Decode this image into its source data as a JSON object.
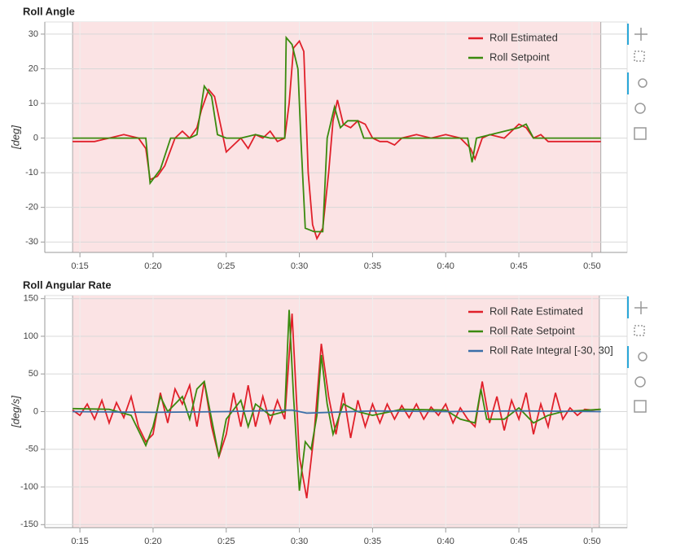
{
  "chart_data": [
    {
      "type": "line",
      "title": "Roll Angle",
      "y_label": "[deg]",
      "xlim": [
        12.6,
        52.4
      ],
      "ylim": [
        -33,
        33.5
      ],
      "xticks": [
        {
          "value": 15,
          "label": "0:15"
        },
        {
          "value": 20,
          "label": "0:20"
        },
        {
          "value": 25,
          "label": "0:25"
        },
        {
          "value": 30,
          "label": "0:30"
        },
        {
          "value": 35,
          "label": "0:35"
        },
        {
          "value": 40,
          "label": "0:40"
        },
        {
          "value": 45,
          "label": "0:45"
        },
        {
          "value": 50,
          "label": "0:50"
        }
      ],
      "yticks": [
        -30,
        -20,
        -10,
        0,
        10,
        20,
        30
      ],
      "grid": true,
      "legend": "top-right",
      "series": [
        {
          "name": "Roll Estimated",
          "color": "#e0202a",
          "x": [
            14.5,
            16,
            17,
            18,
            19,
            19.5,
            19.8,
            20.3,
            20.8,
            21.5,
            22,
            22.5,
            23,
            23.3,
            23.8,
            24.2,
            24.6,
            25,
            25.5,
            26,
            26.5,
            27,
            27.5,
            28,
            28.5,
            29,
            29.3,
            29.6,
            30,
            30.3,
            30.6,
            30.9,
            31.2,
            31.6,
            32,
            32.3,
            32.6,
            33,
            33.5,
            34,
            34.5,
            35,
            35.5,
            36,
            36.5,
            37,
            38,
            39,
            40,
            41,
            41.7,
            42,
            42.5,
            43,
            44,
            44.5,
            45,
            45.5,
            46,
            46.5,
            47,
            48,
            50,
            50.6
          ],
          "values": [
            -1,
            -1,
            0,
            1,
            0,
            -3,
            -12,
            -11,
            -8,
            0,
            2,
            0,
            3,
            8,
            14,
            12,
            4,
            -4,
            -2,
            0,
            -3,
            1,
            0,
            2,
            -1,
            0,
            10,
            26,
            28,
            25,
            -10,
            -25,
            -29,
            -26,
            -10,
            5,
            11,
            4,
            3,
            5,
            4,
            0,
            -1,
            -1,
            -2,
            0,
            1,
            0,
            1,
            0,
            -3,
            -6,
            0,
            1,
            0,
            2,
            4,
            3,
            0,
            1,
            -1,
            -1,
            -1,
            -1
          ]
        },
        {
          "name": "Roll Setpoint",
          "color": "#3a8a0e",
          "x": [
            14.5,
            19.5,
            19.8,
            20.5,
            21.2,
            22.5,
            23,
            23.5,
            24,
            24.4,
            25,
            26,
            27,
            28,
            29,
            29.1,
            29.5,
            29.9,
            30.1,
            30.4,
            31,
            31.6,
            31.9,
            32.4,
            32.8,
            33.3,
            34,
            34.4,
            36,
            41.5,
            41.8,
            42.1,
            45,
            45.5,
            46,
            50.6
          ],
          "values": [
            0,
            0,
            -13,
            -9,
            0,
            0,
            1,
            15,
            12,
            1,
            0,
            0,
            1,
            0,
            0,
            29,
            27,
            20,
            0,
            -26,
            -27,
            -27,
            0,
            9,
            3,
            5,
            5,
            0,
            0,
            0,
            -7,
            0,
            3,
            4,
            0,
            0
          ]
        }
      ]
    },
    {
      "type": "line",
      "title": "Roll Angular Rate",
      "y_label": "[deg/s]",
      "xlim": [
        12.6,
        52.4
      ],
      "ylim": [
        -154,
        154
      ],
      "xticks": [
        {
          "value": 15,
          "label": "0:15"
        },
        {
          "value": 20,
          "label": "0:20"
        },
        {
          "value": 25,
          "label": "0:25"
        },
        {
          "value": 30,
          "label": "0:30"
        },
        {
          "value": 35,
          "label": "0:35"
        },
        {
          "value": 40,
          "label": "0:40"
        },
        {
          "value": 45,
          "label": "0:45"
        },
        {
          "value": 50,
          "label": "0:50"
        }
      ],
      "yticks": [
        -150,
        -100,
        -50,
        0,
        50,
        100,
        150
      ],
      "grid": true,
      "legend": "top-right",
      "series": [
        {
          "name": "Roll Rate Estimated",
          "color": "#e0202a",
          "x": [
            14.5,
            15,
            15.5,
            16,
            16.5,
            17,
            17.5,
            18,
            18.5,
            19,
            19.5,
            20,
            20.5,
            21,
            21.5,
            22,
            22.5,
            23,
            23.5,
            24,
            24.5,
            25,
            25.5,
            26,
            26.5,
            27,
            27.5,
            28,
            28.5,
            29,
            29.5,
            30,
            30.5,
            31,
            31.5,
            32,
            32.5,
            33,
            33.5,
            34,
            34.5,
            35,
            35.5,
            36,
            36.5,
            37,
            37.5,
            38,
            38.5,
            39,
            39.5,
            40,
            40.5,
            41,
            41.5,
            42,
            42.5,
            43,
            43.5,
            44,
            44.5,
            45,
            45.5,
            46,
            46.5,
            47,
            47.5,
            48,
            48.5,
            49,
            49.5,
            50,
            50.5
          ],
          "values": [
            2,
            -5,
            10,
            -10,
            15,
            -15,
            12,
            -8,
            20,
            -20,
            -40,
            -30,
            25,
            -15,
            30,
            10,
            35,
            -20,
            40,
            -20,
            -60,
            -30,
            25,
            -20,
            35,
            -20,
            20,
            -15,
            15,
            -10,
            130,
            -60,
            -115,
            -30,
            90,
            20,
            -30,
            25,
            -35,
            15,
            -20,
            10,
            -15,
            10,
            -10,
            8,
            -8,
            10,
            -10,
            6,
            -5,
            10,
            -15,
            5,
            -10,
            -20,
            40,
            -15,
            20,
            -25,
            15,
            -10,
            25,
            -30,
            10,
            -20,
            25,
            -10,
            5,
            -5,
            3,
            2,
            3
          ]
        },
        {
          "name": "Roll Rate Setpoint",
          "color": "#3a8a0e",
          "x": [
            14.5,
            17,
            18.5,
            19.5,
            20,
            20.5,
            21,
            22,
            22.5,
            23,
            23.5,
            24,
            24.5,
            25,
            26,
            26.5,
            27,
            28,
            29,
            29.3,
            29.6,
            30,
            30.4,
            30.8,
            31.2,
            31.5,
            31.9,
            32.3,
            33,
            34,
            35,
            37,
            40,
            41,
            42,
            42.4,
            42.8,
            44,
            45,
            46,
            47,
            48,
            50.6
          ],
          "values": [
            4,
            3,
            -5,
            -45,
            -20,
            20,
            0,
            20,
            -10,
            30,
            40,
            -10,
            -60,
            -10,
            15,
            -20,
            10,
            -5,
            0,
            135,
            20,
            -105,
            -40,
            -50,
            -5,
            75,
            10,
            -30,
            10,
            0,
            -5,
            3,
            2,
            -10,
            -15,
            30,
            -10,
            -10,
            5,
            -15,
            -5,
            0,
            3
          ]
        },
        {
          "name": "Roll Rate Integral [-30, 30]",
          "color": "#3a6ea8",
          "x": [
            14.5,
            20,
            25,
            29.5,
            30.5,
            35,
            40,
            45,
            50.6
          ],
          "values": [
            0,
            -1,
            0,
            2,
            -2,
            1,
            0,
            1,
            0
          ]
        }
      ]
    }
  ]
}
